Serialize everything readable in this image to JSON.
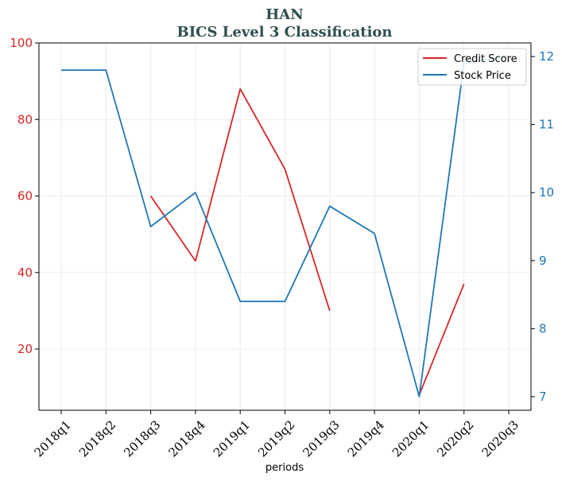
{
  "chart_data": {
    "type": "line",
    "title": "HAN",
    "subtitle": "BICS Level 3 Classification",
    "xlabel": "periods",
    "categories": [
      "2018q1",
      "2018q2",
      "2018q3",
      "2018q4",
      "2019q1",
      "2019q2",
      "2019q3",
      "2019q4",
      "2020q1",
      "2020q2",
      "2020q3"
    ],
    "y_left": {
      "lim": [
        4,
        100
      ],
      "ticks": [
        20,
        40,
        60,
        80,
        100
      ],
      "color": "#d62728"
    },
    "y_right": {
      "lim": [
        6.8,
        12.2
      ],
      "ticks": [
        7,
        8,
        9,
        10,
        11,
        12
      ],
      "color": "#1f77b4"
    },
    "grid": true,
    "legend_position": "top-right",
    "series": [
      {
        "name": "Credit Score",
        "axis": "left",
        "color": "#d62728",
        "values": [
          null,
          null,
          60,
          43,
          88,
          67,
          30,
          null,
          8,
          37,
          null
        ]
      },
      {
        "name": "Stock Price",
        "axis": "right",
        "color": "#1f77b4",
        "values": [
          11.8,
          11.8,
          9.5,
          10.0,
          8.4,
          8.4,
          9.8,
          9.4,
          7.0,
          11.9,
          12.0
        ]
      }
    ]
  }
}
